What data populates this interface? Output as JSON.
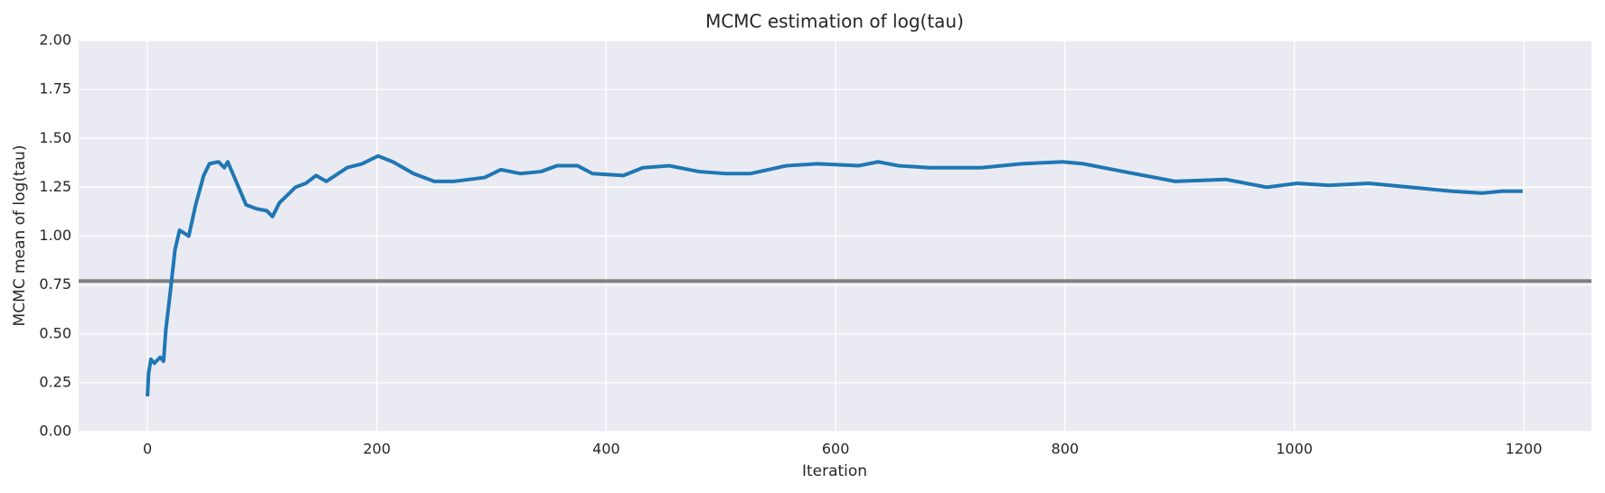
{
  "chart_data": {
    "type": "line",
    "title": "MCMC estimation of log(tau)",
    "x_label": "Iteration",
    "y_label": "MCMC mean of log(tau)",
    "x": [
      0,
      1,
      3,
      6,
      11,
      14,
      16,
      20,
      24,
      28,
      36,
      42,
      49,
      54,
      62,
      67,
      70,
      78,
      86,
      95,
      104,
      109,
      115,
      129,
      138,
      147,
      156,
      174,
      187,
      201,
      214,
      232,
      250,
      267,
      294,
      308,
      325,
      343,
      357,
      375,
      388,
      415,
      432,
      455,
      481,
      504,
      526,
      557,
      584,
      620,
      637,
      655,
      682,
      727,
      762,
      798,
      816,
      851,
      896,
      940,
      976,
      1002,
      1030,
      1065,
      1101,
      1137,
      1164,
      1181,
      1199
    ],
    "series": [
      {
        "name": "MCMC mean",
        "color": "#1f77b4",
        "values": [
          0.18,
          0.3,
          0.37,
          0.35,
          0.38,
          0.36,
          0.52,
          0.72,
          0.93,
          1.03,
          1.0,
          1.16,
          1.31,
          1.37,
          1.38,
          1.35,
          1.38,
          1.27,
          1.16,
          1.14,
          1.13,
          1.1,
          1.17,
          1.25,
          1.27,
          1.31,
          1.28,
          1.35,
          1.37,
          1.41,
          1.38,
          1.32,
          1.28,
          1.28,
          1.3,
          1.34,
          1.32,
          1.33,
          1.36,
          1.36,
          1.32,
          1.31,
          1.35,
          1.36,
          1.33,
          1.32,
          1.32,
          1.36,
          1.37,
          1.36,
          1.38,
          1.36,
          1.35,
          1.35,
          1.37,
          1.38,
          1.37,
          1.33,
          1.28,
          1.29,
          1.25,
          1.27,
          1.26,
          1.27,
          1.25,
          1.23,
          1.22,
          1.23,
          1.23
        ]
      }
    ],
    "hlines": [
      {
        "value": 0.77,
        "color": "#808080"
      }
    ],
    "xlim": [
      -60,
      1259
    ],
    "xticks": [
      0,
      200,
      400,
      600,
      800,
      1000,
      1200
    ],
    "ylim": [
      0,
      2
    ],
    "yticks": [
      {
        "value": 0,
        "label": "0.00"
      },
      {
        "value": 0.25,
        "label": "0.25"
      },
      {
        "value": 0.5,
        "label": "0.50"
      },
      {
        "value": 0.75,
        "label": "0.75"
      },
      {
        "value": 1,
        "label": "1.00"
      },
      {
        "value": 1.25,
        "label": "1.25"
      },
      {
        "value": 1.5,
        "label": "1.50"
      },
      {
        "value": 1.75,
        "label": "1.75"
      },
      {
        "value": 2,
        "label": "2.00"
      }
    ],
    "grid": true
  }
}
